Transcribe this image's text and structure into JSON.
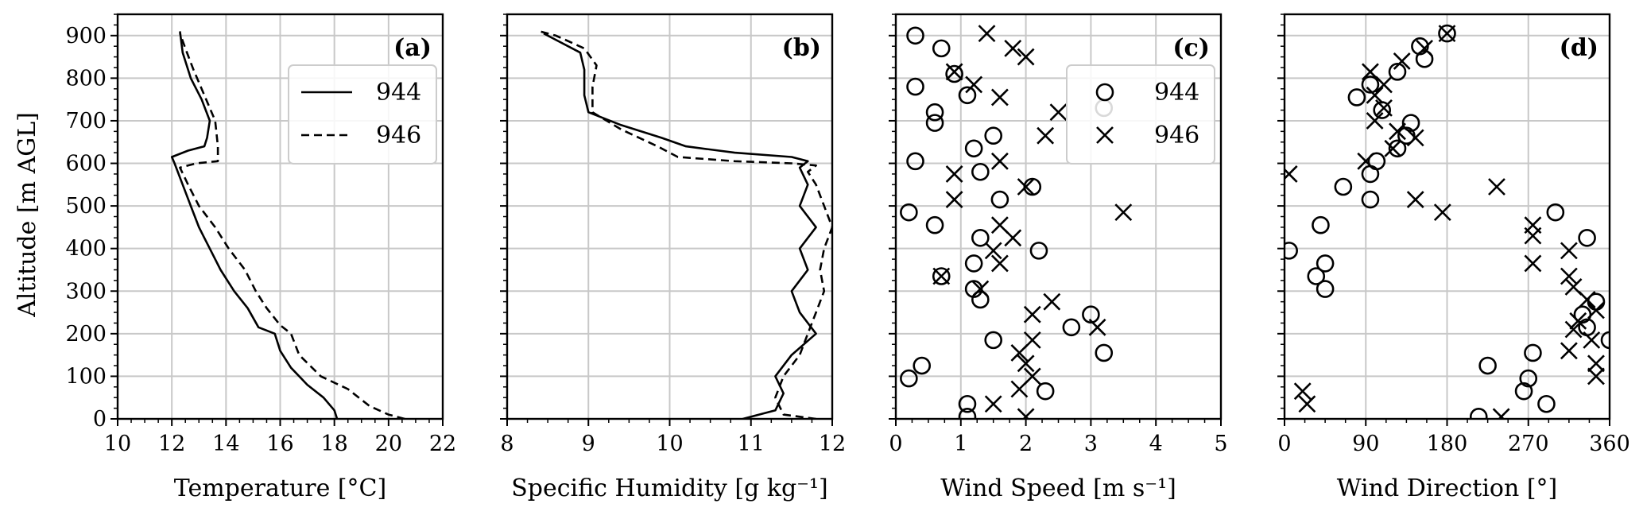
{
  "figure": {
    "ylabel": "Altitude [m AGL]",
    "y_ticks": [
      0,
      100,
      200,
      300,
      400,
      500,
      600,
      700,
      800,
      900
    ],
    "ylim": [
      0,
      950
    ],
    "grid": true,
    "legend_entries": [
      "944",
      "946"
    ]
  },
  "chart_data": [
    {
      "panel": "(a)",
      "type": "line",
      "xlabel": "Temperature [°C]",
      "xlim": [
        10,
        22
      ],
      "x_ticks": [
        10,
        12,
        14,
        16,
        18,
        20,
        22
      ],
      "legend": {
        "placement": "upper-right",
        "entries": [
          "944",
          "946"
        ]
      },
      "series": [
        {
          "name": "944",
          "style": "solid",
          "points": [
            [
              18.1,
              0
            ],
            [
              18.0,
              20
            ],
            [
              17.6,
              50
            ],
            [
              17.0,
              80
            ],
            [
              16.4,
              120
            ],
            [
              16.0,
              160
            ],
            [
              15.8,
              200
            ],
            [
              15.2,
              215
            ],
            [
              14.8,
              260
            ],
            [
              14.3,
              300
            ],
            [
              13.8,
              350
            ],
            [
              13.4,
              400
            ],
            [
              13.0,
              450
            ],
            [
              12.7,
              500
            ],
            [
              12.4,
              550
            ],
            [
              12.1,
              600
            ],
            [
              12.0,
              615
            ],
            [
              12.6,
              630
            ],
            [
              13.2,
              640
            ],
            [
              13.3,
              660
            ],
            [
              13.4,
              700
            ],
            [
              13.1,
              750
            ],
            [
              12.7,
              800
            ],
            [
              12.4,
              860
            ],
            [
              12.3,
              910
            ]
          ]
        },
        {
          "name": "946",
          "style": "dashed",
          "points": [
            [
              20.6,
              0
            ],
            [
              20.0,
              10
            ],
            [
              19.3,
              30
            ],
            [
              18.5,
              70
            ],
            [
              17.5,
              100
            ],
            [
              16.7,
              150
            ],
            [
              16.4,
              200
            ],
            [
              16.0,
              220
            ],
            [
              15.5,
              260
            ],
            [
              15.1,
              300
            ],
            [
              14.7,
              350
            ],
            [
              14.1,
              400
            ],
            [
              13.6,
              450
            ],
            [
              13.0,
              500
            ],
            [
              12.6,
              550
            ],
            [
              12.3,
              590
            ],
            [
              12.9,
              600
            ],
            [
              13.7,
              605
            ],
            [
              13.7,
              640
            ],
            [
              13.6,
              700
            ],
            [
              13.2,
              760
            ],
            [
              12.8,
              820
            ],
            [
              12.5,
              870
            ],
            [
              12.3,
              905
            ]
          ]
        }
      ]
    },
    {
      "panel": "(b)",
      "type": "line",
      "xlabel": "Specific Humidity [g kg⁻¹]",
      "xlim": [
        8,
        12
      ],
      "x_ticks": [
        8,
        9,
        10,
        11,
        12
      ],
      "series": [
        {
          "name": "944",
          "style": "solid",
          "points": [
            [
              10.9,
              0
            ],
            [
              11.3,
              20
            ],
            [
              11.4,
              60
            ],
            [
              11.3,
              100
            ],
            [
              11.5,
              150
            ],
            [
              11.8,
              200
            ],
            [
              11.6,
              250
            ],
            [
              11.5,
              300
            ],
            [
              11.7,
              350
            ],
            [
              11.6,
              400
            ],
            [
              11.8,
              450
            ],
            [
              11.6,
              500
            ],
            [
              11.7,
              550
            ],
            [
              11.6,
              590
            ],
            [
              11.7,
              605
            ],
            [
              11.5,
              615
            ],
            [
              10.8,
              625
            ],
            [
              10.2,
              640
            ],
            [
              9.9,
              660
            ],
            [
              9.4,
              690
            ],
            [
              9.0,
              720
            ],
            [
              8.95,
              760
            ],
            [
              8.95,
              820
            ],
            [
              8.9,
              860
            ],
            [
              8.6,
              890
            ],
            [
              8.45,
              905
            ]
          ]
        },
        {
          "name": "946",
          "style": "dashed",
          "points": [
            [
              11.8,
              0
            ],
            [
              11.4,
              10
            ],
            [
              11.3,
              50
            ],
            [
              11.4,
              100
            ],
            [
              11.6,
              150
            ],
            [
              11.7,
              200
            ],
            [
              11.8,
              250
            ],
            [
              11.9,
              300
            ],
            [
              11.85,
              350
            ],
            [
              11.9,
              400
            ],
            [
              12.0,
              450
            ],
            [
              11.9,
              500
            ],
            [
              11.8,
              550
            ],
            [
              11.7,
              580
            ],
            [
              11.8,
              595
            ],
            [
              11.5,
              600
            ],
            [
              10.8,
              605
            ],
            [
              10.1,
              615
            ],
            [
              9.85,
              640
            ],
            [
              9.4,
              680
            ],
            [
              9.05,
              720
            ],
            [
              9.05,
              780
            ],
            [
              9.1,
              830
            ],
            [
              8.95,
              870
            ],
            [
              8.6,
              900
            ],
            [
              8.4,
              910
            ]
          ]
        }
      ]
    },
    {
      "panel": "(c)",
      "type": "scatter",
      "xlabel": "Wind Speed [m s⁻¹]",
      "xlim": [
        0,
        5
      ],
      "x_ticks": [
        0,
        1,
        2,
        3,
        4,
        5
      ],
      "legend": {
        "placement": "upper-right",
        "entries": [
          "944",
          "946"
        ]
      },
      "series": [
        {
          "name": "944",
          "marker": "circle",
          "points": [
            [
              0.3,
              900
            ],
            [
              0.7,
              870
            ],
            [
              0.9,
              810
            ],
            [
              0.3,
              780
            ],
            [
              1.1,
              760
            ],
            [
              3.2,
              730
            ],
            [
              0.6,
              720
            ],
            [
              0.6,
              695
            ],
            [
              1.5,
              665
            ],
            [
              1.2,
              635
            ],
            [
              0.3,
              605
            ],
            [
              1.3,
              580
            ],
            [
              2.1,
              545
            ],
            [
              1.6,
              515
            ],
            [
              0.2,
              485
            ],
            [
              0.6,
              455
            ],
            [
              1.3,
              425
            ],
            [
              2.2,
              395
            ],
            [
              1.2,
              365
            ],
            [
              0.7,
              335
            ],
            [
              1.2,
              305
            ],
            [
              1.3,
              280
            ],
            [
              3.0,
              245
            ],
            [
              2.7,
              215
            ],
            [
              1.5,
              185
            ],
            [
              3.2,
              155
            ],
            [
              0.4,
              125
            ],
            [
              0.2,
              95
            ],
            [
              2.3,
              65
            ],
            [
              1.1,
              35
            ],
            [
              1.1,
              5
            ]
          ]
        },
        {
          "name": "946",
          "marker": "x",
          "points": [
            [
              1.4,
              905
            ],
            [
              1.8,
              870
            ],
            [
              2.0,
              850
            ],
            [
              0.9,
              815
            ],
            [
              1.2,
              785
            ],
            [
              1.6,
              755
            ],
            [
              2.5,
              720
            ],
            [
              2.3,
              665
            ],
            [
              1.6,
              605
            ],
            [
              0.9,
              575
            ],
            [
              2.0,
              545
            ],
            [
              0.9,
              515
            ],
            [
              3.5,
              485
            ],
            [
              1.6,
              455
            ],
            [
              1.8,
              425
            ],
            [
              1.5,
              395
            ],
            [
              1.6,
              365
            ],
            [
              0.7,
              335
            ],
            [
              1.3,
              305
            ],
            [
              2.4,
              275
            ],
            [
              2.1,
              245
            ],
            [
              3.1,
              215
            ],
            [
              2.1,
              185
            ],
            [
              1.9,
              155
            ],
            [
              2.0,
              130
            ],
            [
              2.1,
              100
            ],
            [
              1.9,
              70
            ],
            [
              1.5,
              35
            ],
            [
              2.0,
              5
            ]
          ]
        }
      ]
    },
    {
      "panel": "(d)",
      "type": "scatter",
      "xlabel": "Wind Direction [°]",
      "xlim": [
        0,
        360
      ],
      "x_ticks": [
        0,
        90,
        180,
        270,
        360
      ],
      "series": [
        {
          "name": "944",
          "marker": "circle",
          "points": [
            [
              180,
              905
            ],
            [
              150,
              875
            ],
            [
              155,
              845
            ],
            [
              125,
              815
            ],
            [
              95,
              785
            ],
            [
              80,
              755
            ],
            [
              108,
              725
            ],
            [
              140,
              695
            ],
            [
              135,
              665
            ],
            [
              125,
              635
            ],
            [
              102,
              605
            ],
            [
              95,
              575
            ],
            [
              65,
              545
            ],
            [
              95,
              515
            ],
            [
              300,
              485
            ],
            [
              40,
              455
            ],
            [
              335,
              425
            ],
            [
              5,
              395
            ],
            [
              45,
              365
            ],
            [
              35,
              335
            ],
            [
              45,
              305
            ],
            [
              345,
              275
            ],
            [
              330,
              245
            ],
            [
              335,
              215
            ],
            [
              360,
              185
            ],
            [
              275,
              155
            ],
            [
              225,
              125
            ],
            [
              270,
              95
            ],
            [
              265,
              65
            ],
            [
              290,
              35
            ],
            [
              215,
              5
            ]
          ]
        },
        {
          "name": "946",
          "marker": "x",
          "points": [
            [
              180,
              905
            ],
            [
              155,
              870
            ],
            [
              130,
              840
            ],
            [
              95,
              815
            ],
            [
              110,
              785
            ],
            [
              100,
              760
            ],
            [
              110,
              730
            ],
            [
              100,
              700
            ],
            [
              125,
              675
            ],
            [
              145,
              660
            ],
            [
              120,
              635
            ],
            [
              90,
              605
            ],
            [
              5,
              575
            ],
            [
              235,
              545
            ],
            [
              145,
              515
            ],
            [
              175,
              485
            ],
            [
              275,
              455
            ],
            [
              275,
              430
            ],
            [
              315,
              395
            ],
            [
              275,
              365
            ],
            [
              315,
              335
            ],
            [
              320,
              310
            ],
            [
              335,
              280
            ],
            [
              345,
              255
            ],
            [
              325,
              230
            ],
            [
              320,
              210
            ],
            [
              340,
              185
            ],
            [
              315,
              160
            ],
            [
              345,
              130
            ],
            [
              345,
              100
            ],
            [
              20,
              65
            ],
            [
              25,
              35
            ],
            [
              240,
              5
            ]
          ]
        }
      ]
    }
  ]
}
